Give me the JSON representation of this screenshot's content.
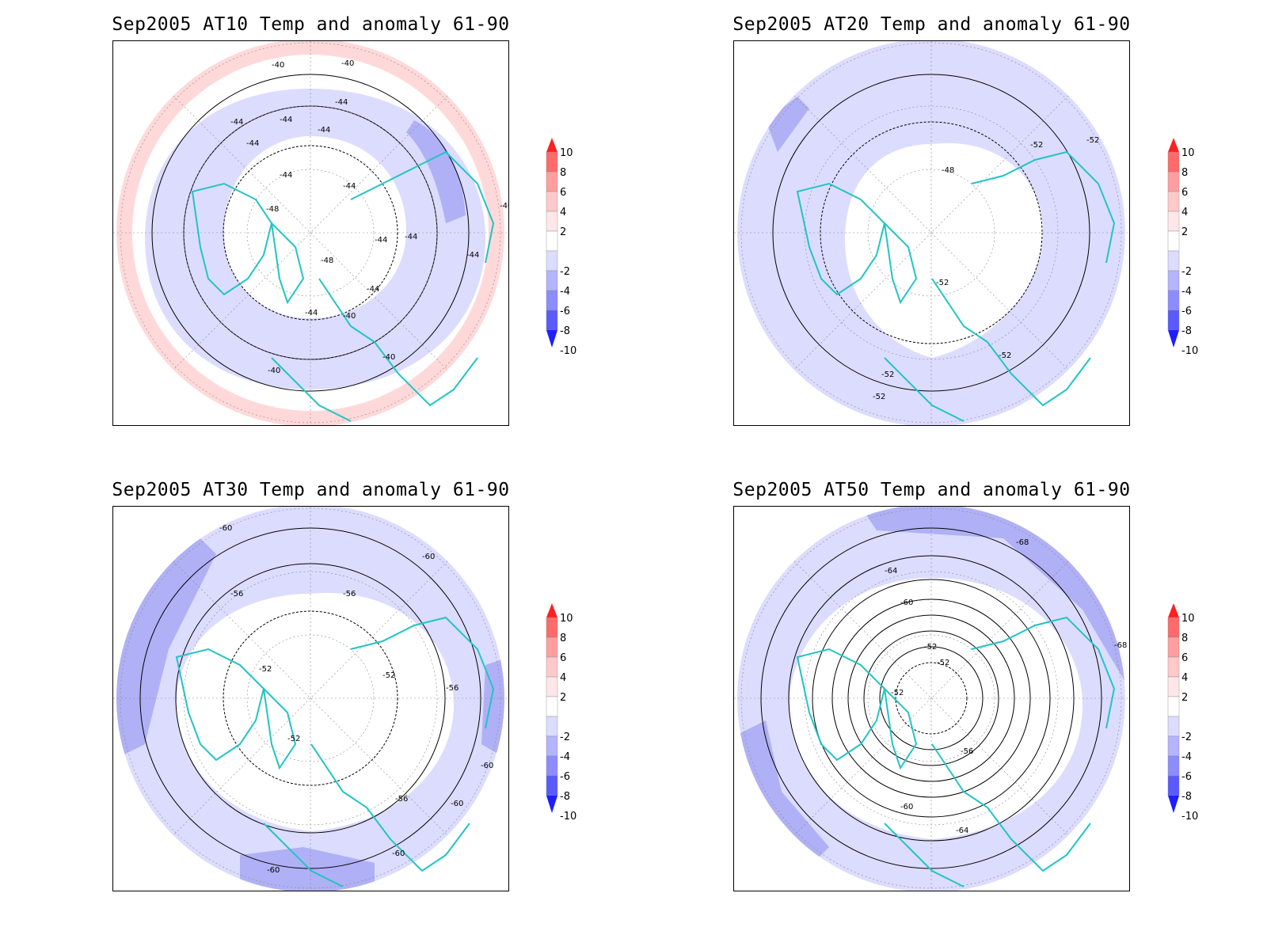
{
  "panels": [
    {
      "title": "Sep2005 AT10 Temp and anomaly 61-90",
      "contour_labels": [
        "-40",
        "-40",
        "-40",
        "-44",
        "-44",
        "-44",
        "-44",
        "-44",
        "-44",
        "-48",
        "-48",
        "-44",
        "-44",
        "-44",
        "-44",
        "-44",
        "-44",
        "-40",
        "-40",
        "-40"
      ]
    },
    {
      "title": "Sep2005 AT20 Temp and anomaly 61-90",
      "contour_labels": [
        "-52",
        "-52",
        "-48",
        "-52",
        "-52",
        "-52",
        "-52"
      ]
    },
    {
      "title": "Sep2005 AT30 Temp and anomaly 61-90",
      "contour_labels": [
        "-60",
        "-60",
        "-56",
        "-56",
        "-52",
        "-52",
        "-52",
        "-56",
        "-60",
        "-56",
        "-60",
        "-60",
        "-60"
      ]
    },
    {
      "title": "Sep2005 AT50 Temp and anomaly 61-90",
      "contour_labels": [
        "-68",
        "-64",
        "-60",
        "-52",
        "-52",
        "-52",
        "-56",
        "-60",
        "-64",
        "-68"
      ]
    }
  ],
  "colorbar": {
    "labels": [
      "10",
      "8",
      "6",
      "4",
      "2",
      "-2",
      "-4",
      "-6",
      "-8",
      "-10"
    ],
    "colors": [
      "#ff2020",
      "#ff6a6a",
      "#ff9e9e",
      "#ffc9c9",
      "#ffe7e7",
      "#ffffff",
      "#dcdcff",
      "#b4b4ff",
      "#8c8cff",
      "#5a5aff",
      "#1e1eff"
    ]
  },
  "colors": {
    "coastline": "#22c4c4",
    "contour": "#000000",
    "anomaly_warm_1": "#ffd9d9",
    "anomaly_cool_1": "#dcdcff",
    "anomaly_cool_2": "#b0b0f6"
  }
}
